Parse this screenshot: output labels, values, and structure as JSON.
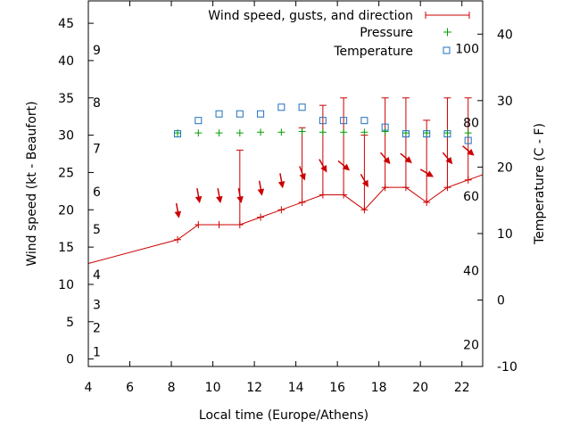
{
  "chart_data": {
    "type": "line",
    "xlabel": "Local time (Europe/Athens)",
    "ylabel": "Wind speed (kt - Beaufort)",
    "y2label": "Temperature (C - F)",
    "xlim": [
      4,
      23
    ],
    "ylim": [
      -1,
      48
    ],
    "y2lim": [
      -10,
      45
    ],
    "x_ticks": [
      4,
      6,
      8,
      10,
      12,
      14,
      16,
      18,
      20,
      22
    ],
    "y_ticks": [
      0,
      5,
      10,
      15,
      20,
      25,
      30,
      35,
      40,
      45
    ],
    "y2_ticks": [
      -10,
      0,
      10,
      20,
      30,
      40
    ],
    "beaufort_scale": [
      {
        "label": "1",
        "kt": 1
      },
      {
        "label": "2",
        "kt": 4.2
      },
      {
        "label": "3",
        "kt": 7.3
      },
      {
        "label": "4",
        "kt": 11.3
      },
      {
        "label": "5",
        "kt": 17.4
      },
      {
        "label": "6",
        "kt": 22.4
      },
      {
        "label": "7",
        "kt": 28.2
      },
      {
        "label": "8",
        "kt": 34.4
      },
      {
        "label": "9",
        "kt": 41.4
      }
    ],
    "fahrenheit_scale": [
      {
        "label": "20",
        "c": -6.7
      },
      {
        "label": "40",
        "c": 4.4
      },
      {
        "label": "60",
        "c": 15.6
      },
      {
        "label": "80",
        "c": 26.7
      },
      {
        "label": "100",
        "c": 37.8
      }
    ],
    "series": [
      {
        "name": "Wind speed, gusts, and direction",
        "color": "#cc0000",
        "x": [
          4,
          8.3,
          9.3,
          10.3,
          11.3,
          12.3,
          13.3,
          14.3,
          15.3,
          16.3,
          17.3,
          18.3,
          19.3,
          20.3,
          21.3,
          22.3,
          23
        ],
        "values": [
          12.8,
          16,
          18,
          18,
          18,
          19,
          20,
          21,
          22,
          22,
          20,
          23,
          23,
          21,
          23,
          24,
          24.7
        ],
        "gusts": [
          null,
          null,
          null,
          null,
          28,
          null,
          null,
          31,
          34,
          35,
          30,
          35,
          35,
          32,
          35,
          35,
          null
        ],
        "direction_deg": [
          null,
          350,
          350,
          350,
          350,
          350,
          350,
          340,
          330,
          310,
          330,
          320,
          310,
          300,
          320,
          310,
          null
        ]
      },
      {
        "name": "Pressure",
        "color": "#00a000",
        "x": [
          8.3,
          9.3,
          10.3,
          11.3,
          12.3,
          13.3,
          14.3,
          15.3,
          16.3,
          17.3,
          18.3,
          19.3,
          20.3,
          21.3,
          22.3
        ],
        "values": [
          30.3,
          30.3,
          30.3,
          30.3,
          30.4,
          30.4,
          30.5,
          30.4,
          30.4,
          30.4,
          30.5,
          30.3,
          30.3,
          30.3,
          30.3
        ]
      },
      {
        "name": "Temperature",
        "axis": "y2",
        "color": "#1f6fc0",
        "x": [
          8.3,
          9.3,
          10.3,
          11.3,
          12.3,
          13.3,
          14.3,
          15.3,
          16.3,
          17.3,
          18.3,
          19.3,
          20.3,
          21.3,
          22.3
        ],
        "values": [
          25,
          27,
          28,
          28,
          28,
          29,
          29,
          27,
          27,
          27,
          26,
          25,
          25,
          25,
          24
        ]
      }
    ]
  }
}
